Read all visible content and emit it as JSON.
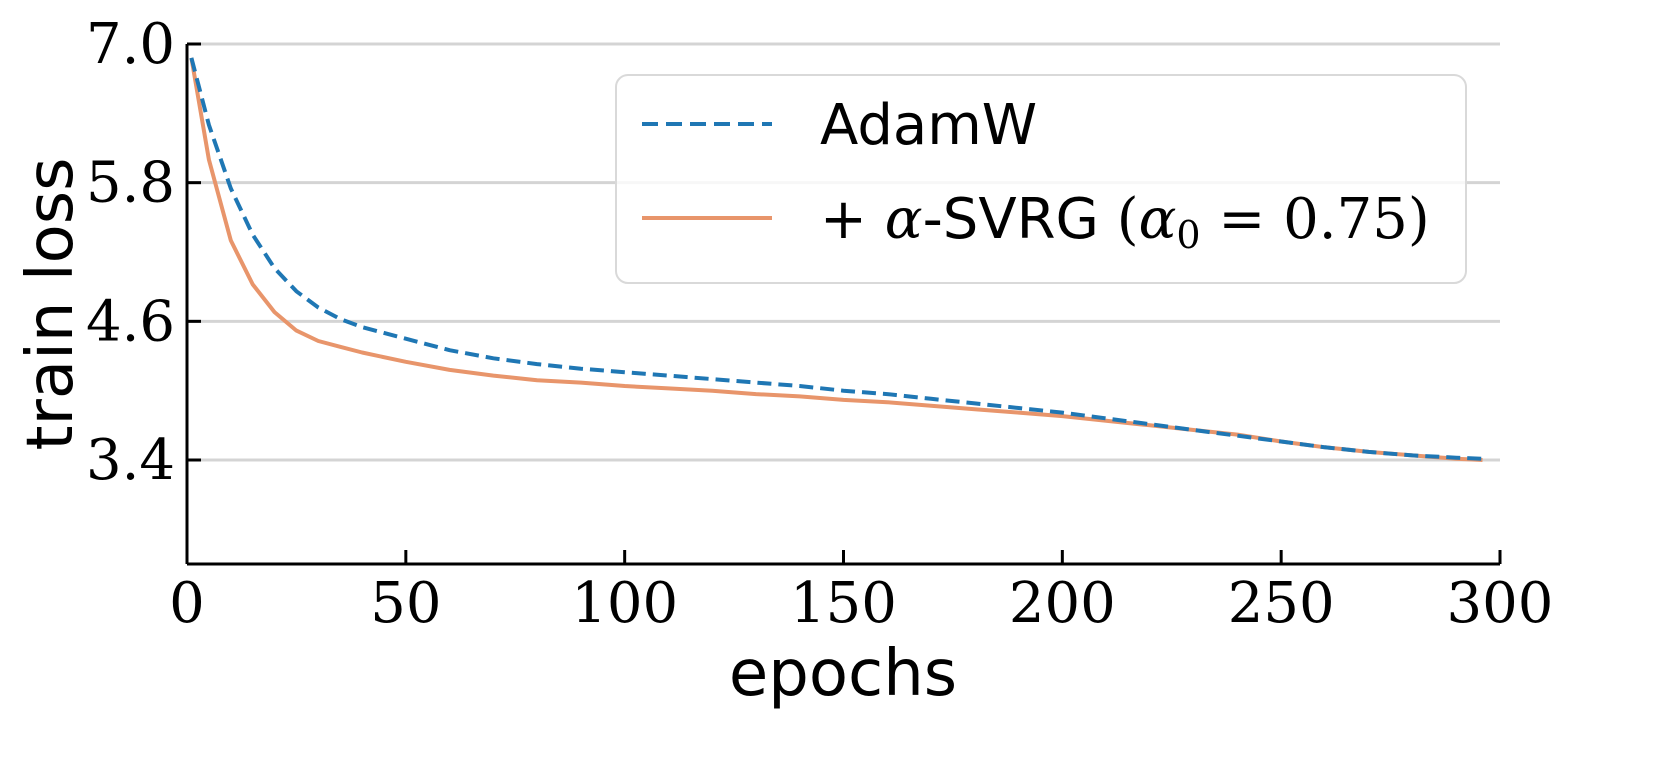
{
  "chart_data": {
    "type": "line",
    "xlabel": "epochs",
    "ylabel": "train loss",
    "xlim": [
      0,
      300
    ],
    "ylim": [
      2.5,
      7.0
    ],
    "xticks": [
      "0",
      "50",
      "100",
      "150",
      "200",
      "250",
      "300"
    ],
    "xtick_values": [
      0,
      50,
      100,
      150,
      200,
      250,
      300
    ],
    "yticks": [
      "7.0",
      "5.8",
      "4.6",
      "3.4"
    ],
    "ytick_values": [
      7.0,
      5.8,
      4.6,
      3.4
    ],
    "grid": "horizontal",
    "legend_position": "top-right",
    "series": [
      {
        "name": "AdamW",
        "color": "#1f77b4",
        "style": "dashed",
        "x": [
          1,
          5,
          10,
          15,
          20,
          25,
          30,
          35,
          40,
          50,
          60,
          70,
          80,
          90,
          100,
          110,
          120,
          130,
          140,
          150,
          160,
          170,
          180,
          190,
          200,
          210,
          220,
          230,
          240,
          250,
          260,
          270,
          280,
          290,
          296
        ],
        "y": [
          6.88,
          6.3,
          5.75,
          5.35,
          5.06,
          4.86,
          4.72,
          4.62,
          4.55,
          4.45,
          4.35,
          4.28,
          4.23,
          4.19,
          4.16,
          4.13,
          4.1,
          4.07,
          4.04,
          4.0,
          3.97,
          3.93,
          3.89,
          3.85,
          3.81,
          3.76,
          3.71,
          3.66,
          3.61,
          3.56,
          3.51,
          3.47,
          3.44,
          3.42,
          3.41
        ]
      },
      {
        "name": "+ α-SVRG (α0 = 0.75)",
        "color": "#e8956b",
        "style": "solid",
        "x": [
          1,
          5,
          10,
          15,
          20,
          25,
          30,
          35,
          40,
          50,
          60,
          70,
          80,
          90,
          100,
          110,
          120,
          130,
          140,
          150,
          160,
          170,
          180,
          190,
          200,
          210,
          220,
          230,
          240,
          250,
          260,
          270,
          280,
          290,
          296
        ],
        "y": [
          6.88,
          6.0,
          5.3,
          4.92,
          4.68,
          4.52,
          4.43,
          4.38,
          4.33,
          4.25,
          4.18,
          4.13,
          4.09,
          4.07,
          4.04,
          4.02,
          4.0,
          3.97,
          3.95,
          3.92,
          3.9,
          3.87,
          3.84,
          3.81,
          3.78,
          3.74,
          3.7,
          3.66,
          3.62,
          3.56,
          3.51,
          3.47,
          3.44,
          3.41,
          3.4
        ]
      }
    ]
  },
  "legend": {
    "adamw_label": "AdamW",
    "svrg_prefix": "+ ",
    "svrg_alpha": "α",
    "svrg_name": "-SVRG ",
    "svrg_open": "(",
    "svrg_alpha0": "α",
    "svrg_sub": "0",
    "svrg_eq": " = ",
    "svrg_value": "0.75",
    "svrg_close": ")"
  }
}
